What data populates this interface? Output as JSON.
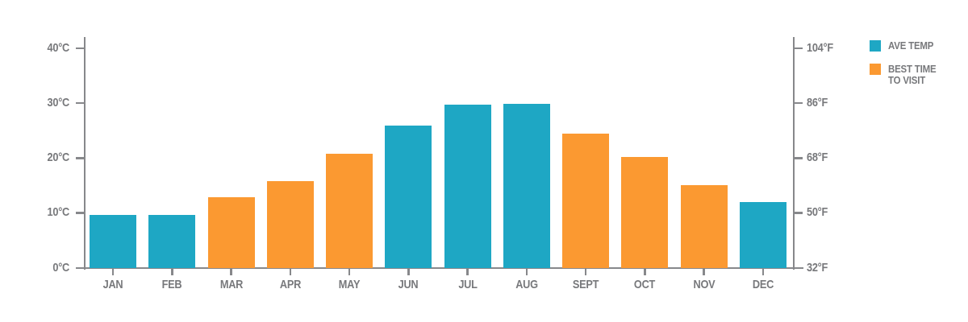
{
  "chart_data": {
    "type": "bar",
    "categories": [
      "JAN",
      "FEB",
      "MAR",
      "APR",
      "MAY",
      "JUN",
      "JUL",
      "AUG",
      "SEPT",
      "OCT",
      "NOV",
      "DEC"
    ],
    "values_celsius": [
      9.7,
      9.7,
      12.9,
      15.9,
      20.9,
      26.0,
      29.8,
      29.9,
      24.5,
      20.3,
      15.1,
      12.0
    ],
    "bar_series": [
      "ave_temp",
      "ave_temp",
      "best_time",
      "best_time",
      "best_time",
      "ave_temp",
      "ave_temp",
      "ave_temp",
      "best_time",
      "best_time",
      "best_time",
      "ave_temp"
    ],
    "axes": {
      "left": {
        "unit": "°C",
        "ticks": [
          0,
          10,
          20,
          30,
          40
        ]
      },
      "right": {
        "unit": "°F",
        "ticks": [
          32,
          50,
          68,
          86,
          104
        ]
      }
    },
    "ylim_celsius": [
      0,
      42
    ],
    "grid": false,
    "legend_position": "top-right",
    "colors": {
      "ave_temp": "#1EA7C4",
      "best_time": "#FB9931",
      "axis": "#87888B",
      "label": "#77787B"
    }
  },
  "legend": {
    "items": [
      {
        "id": "ave_temp",
        "color": "#1EA7C4",
        "lines": [
          "AVE TEMP"
        ]
      },
      {
        "id": "best_time",
        "color": "#FB9931",
        "lines": [
          "BEST TIME",
          "TO VISIT"
        ]
      }
    ]
  }
}
